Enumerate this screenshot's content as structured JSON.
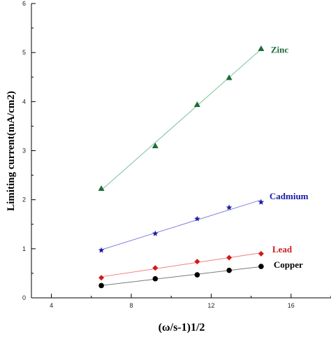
{
  "chart_data": {
    "type": "scatter",
    "xlabel": "(ω/s-1)1/2",
    "ylabel": "Limiting current(mA/cm2)",
    "xlim": [
      3,
      18
    ],
    "ylim": [
      0,
      6
    ],
    "x_ticks": [
      "4",
      "8",
      "12",
      "16"
    ],
    "y_ticks": [
      "0",
      "1",
      "2",
      "3",
      "4",
      "5",
      "6"
    ],
    "x_tick_values": [
      4,
      8,
      12,
      16
    ],
    "y_tick_values": [
      0,
      1,
      2,
      3,
      4,
      5,
      6
    ],
    "grid": false,
    "legend": "labels at line ends",
    "series": [
      {
        "name": "Zinc",
        "marker": "triangle",
        "color": "#1f6b35",
        "line_color": "#7ac29a",
        "x": [
          6.5,
          9.2,
          11.3,
          12.9,
          14.5
        ],
        "y": [
          2.23,
          3.1,
          3.94,
          4.49,
          5.08
        ]
      },
      {
        "name": "Cadmium",
        "marker": "star",
        "color": "#1a1aa8",
        "line_color": "#8080e0",
        "x": [
          6.5,
          9.2,
          11.3,
          12.9,
          14.5
        ],
        "y": [
          0.97,
          1.31,
          1.61,
          1.84,
          1.95
        ]
      },
      {
        "name": "Lead",
        "marker": "diamond",
        "color": "#d11b1b",
        "line_color": "#f07f7f",
        "x": [
          6.5,
          9.2,
          11.3,
          12.9,
          14.5
        ],
        "y": [
          0.41,
          0.61,
          0.74,
          0.82,
          0.9
        ]
      },
      {
        "name": "Copper",
        "marker": "circle",
        "color": "#000000",
        "line_color": "#7a7a7a",
        "x": [
          6.5,
          9.2,
          11.3,
          12.9,
          14.5
        ],
        "y": [
          0.25,
          0.39,
          0.47,
          0.56,
          0.64
        ]
      }
    ]
  }
}
